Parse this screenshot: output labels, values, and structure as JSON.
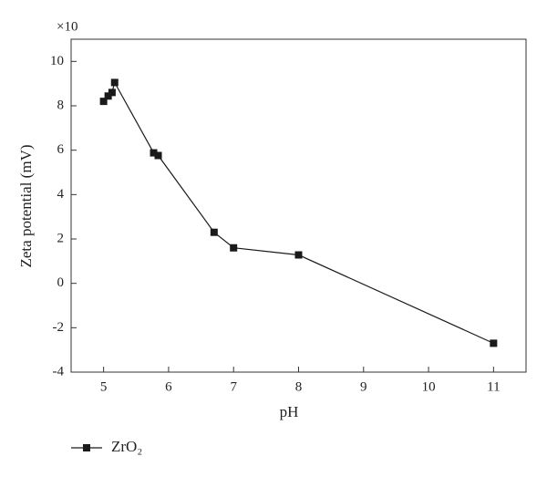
{
  "chart_data": {
    "type": "line",
    "y_scale_note": "×10",
    "xlabel": "pH",
    "ylabel": "Zeta potential (mV)",
    "xlim": [
      4.5,
      11.5
    ],
    "xticks": [
      5,
      6,
      7,
      8,
      9,
      10,
      11
    ],
    "ylim": [
      -4,
      11
    ],
    "yticks": [
      -4,
      -2,
      0,
      2,
      4,
      6,
      8,
      10
    ],
    "legend": "bottom-left",
    "series": [
      {
        "name": "ZrO₂",
        "color": "#1a1a1a",
        "marker": "square",
        "x": [
          5.0,
          5.07,
          5.13,
          5.17,
          5.77,
          5.84,
          6.7,
          7.0,
          8.0,
          11.0
        ],
        "values": [
          8.2,
          8.44,
          8.6,
          9.05,
          5.88,
          5.76,
          2.3,
          1.6,
          1.28,
          -2.7
        ]
      }
    ]
  }
}
